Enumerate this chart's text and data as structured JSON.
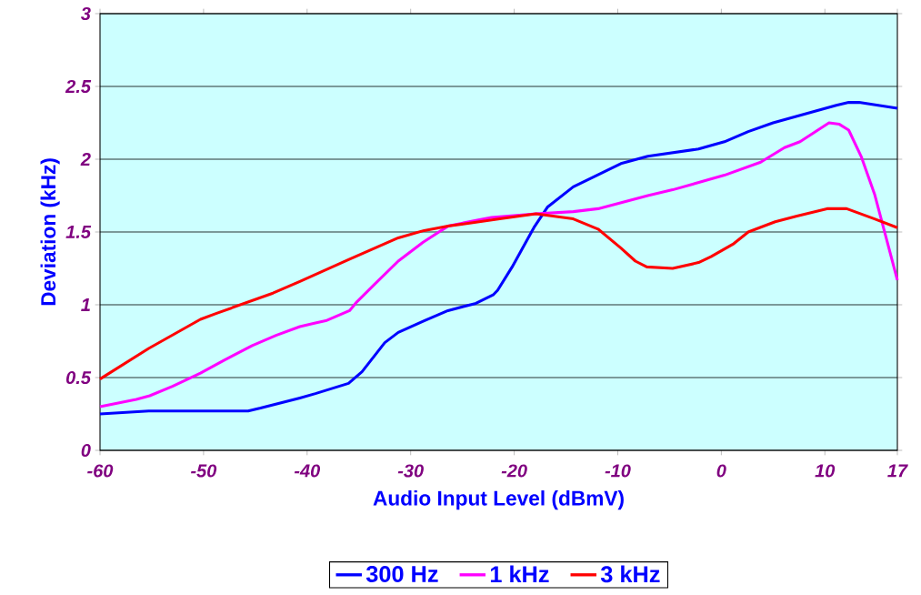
{
  "chart_data": {
    "type": "line",
    "xlabel": "Audio Input Level (dBmV)",
    "ylabel": "Deviation (kHz)",
    "xlim": [
      -60,
      17
    ],
    "xticks": [
      -60,
      -50,
      -40,
      -30,
      -20,
      -10,
      0,
      10,
      17
    ],
    "ylim": [
      0,
      3
    ],
    "yticks": [
      0,
      0.5,
      1,
      1.5,
      2,
      2.5,
      3
    ],
    "grid": "y",
    "legend": "bottom",
    "marker": "none",
    "line_style": "solid",
    "series": [
      {
        "name": "300 Hz",
        "color": "#0000ff",
        "x": [
          -60,
          -55.3,
          -45.7,
          -44.5,
          -40.7,
          -39.2,
          -36,
          -34.7,
          -32.5,
          -31.2,
          -28.7,
          -26.4,
          -23.7,
          -22,
          -21.6,
          -20.2,
          -18.1,
          -16.8,
          -14.3,
          -12,
          -9.7,
          -7.1,
          -2.2,
          0.3,
          2.6,
          5,
          11.1,
          12.3,
          13.3,
          17
        ],
        "values": [
          0.25,
          0.27,
          0.27,
          0.29,
          0.36,
          0.39,
          0.46,
          0.54,
          0.74,
          0.81,
          0.89,
          0.96,
          1.01,
          1.07,
          1.1,
          1.26,
          1.53,
          1.67,
          1.81,
          1.89,
          1.97,
          2.02,
          2.07,
          2.12,
          2.19,
          2.25,
          2.37,
          2.39,
          2.39,
          2.35
        ]
      },
      {
        "name": "1 kHz",
        "color": "#ff00ff",
        "x": [
          -60,
          -56.5,
          -55.2,
          -53,
          -50.3,
          -48,
          -45.3,
          -43,
          -40.7,
          -39.2,
          -38.2,
          -35.9,
          -35.2,
          -33.5,
          -31.2,
          -28.8,
          -26.4,
          -23.7,
          -22.2,
          -17.9,
          -14.3,
          -11.9,
          -7.1,
          -4.7,
          0.3,
          3.8,
          6.1,
          7.6,
          10.4,
          11.4,
          12.3,
          13.5,
          14.8,
          17
        ],
        "values": [
          0.3,
          0.35,
          0.375,
          0.44,
          0.53,
          0.62,
          0.72,
          0.79,
          0.85,
          0.875,
          0.89,
          0.96,
          1.02,
          1.14,
          1.3,
          1.43,
          1.54,
          1.58,
          1.6,
          1.625,
          1.64,
          1.66,
          1.75,
          1.79,
          1.89,
          1.98,
          2.08,
          2.12,
          2.25,
          2.24,
          2.2,
          2.02,
          1.76,
          1.17
        ]
      },
      {
        "name": "3 kHz",
        "color": "#ff0000",
        "x": [
          -60,
          -55.3,
          -50.3,
          -48.8,
          -43.3,
          -40.7,
          -36,
          -31.2,
          -28.7,
          -26.4,
          -21.4,
          -17.9,
          -14.3,
          -11.9,
          -9.7,
          -8.3,
          -7.2,
          -4.7,
          -2.2,
          -1,
          1.2,
          2.6,
          5.2,
          7.3,
          10.2,
          12.1,
          14.8,
          17
        ],
        "values": [
          0.49,
          0.7,
          0.9,
          0.94,
          1.08,
          1.16,
          1.31,
          1.46,
          1.51,
          1.54,
          1.59,
          1.625,
          1.59,
          1.52,
          1.39,
          1.3,
          1.26,
          1.25,
          1.29,
          1.33,
          1.42,
          1.5,
          1.57,
          1.61,
          1.66,
          1.66,
          1.59,
          1.53
        ]
      }
    ]
  }
}
